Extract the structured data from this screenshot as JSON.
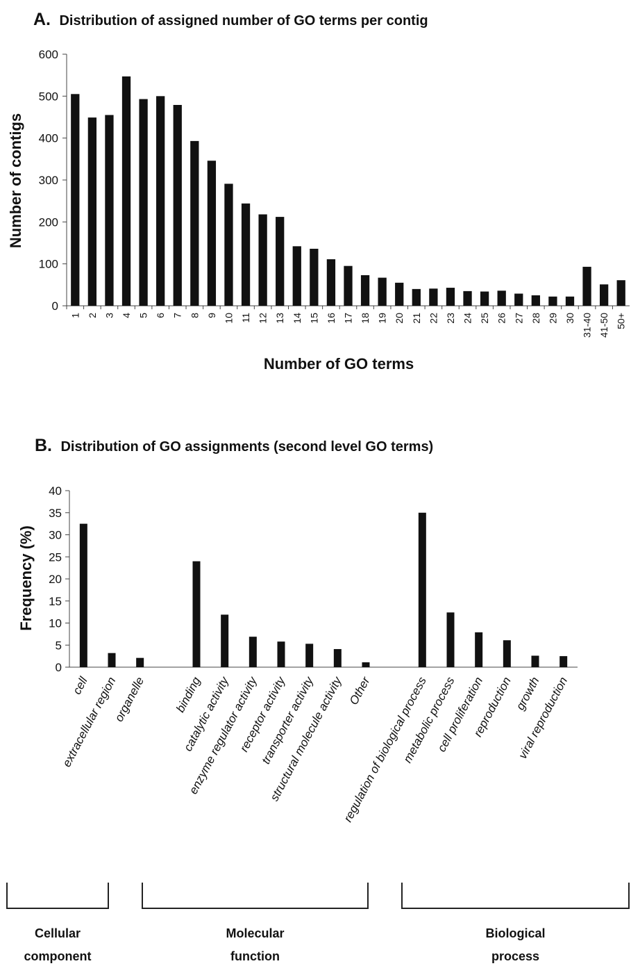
{
  "chart_data": [
    {
      "type": "bar",
      "panel_letter": "A.",
      "title": "Distribution of assigned number of GO terms per contig",
      "xlabel": "Number of GO terms",
      "ylabel": "Number of contigs",
      "ylim": [
        0,
        600
      ],
      "yticks": [
        "0",
        "100",
        "200",
        "300",
        "400",
        "500",
        "600"
      ],
      "grid": false,
      "bar_color": "#111111",
      "categories": [
        "1",
        "2",
        "3",
        "4",
        "5",
        "6",
        "7",
        "8",
        "9",
        "10",
        "11",
        "12",
        "13",
        "14",
        "15",
        "16",
        "17",
        "18",
        "19",
        "20",
        "21",
        "22",
        "23",
        "24",
        "25",
        "26",
        "27",
        "28",
        "29",
        "30",
        "31-40",
        "41-50",
        "50+"
      ],
      "values": [
        505,
        449,
        455,
        547,
        493,
        500,
        479,
        393,
        346,
        291,
        244,
        218,
        212,
        142,
        136,
        111,
        95,
        73,
        67,
        55,
        40,
        41,
        43,
        35,
        34,
        36,
        29,
        25,
        22,
        22,
        93,
        51,
        61
      ]
    },
    {
      "type": "bar",
      "panel_letter": "B.",
      "title": "Distribution of GO assignments (second level GO terms)",
      "xlabel": "",
      "ylabel": "Frequency (%)",
      "ylim": [
        0,
        40
      ],
      "yticks": [
        "0",
        "5",
        "10",
        "15",
        "20",
        "25",
        "30",
        "35",
        "40"
      ],
      "grid": false,
      "bar_color": "#111111",
      "categories": [
        "cell",
        "extracellular region",
        "organelle",
        "",
        "binding",
        "catalytic activity",
        "enzyme regulator activity",
        "receptor activity",
        "transporter activity",
        "structural molecule activity",
        "Other",
        "",
        "regulation of biological process",
        "metabolic process",
        "cell proliferation",
        "reproduction",
        "growth",
        "viral reproduction"
      ],
      "values": [
        32.5,
        3.2,
        2.1,
        null,
        24.0,
        11.9,
        6.9,
        5.8,
        5.3,
        4.1,
        1.1,
        null,
        35.0,
        12.4,
        7.9,
        6.1,
        2.6,
        2.5
      ],
      "groups": [
        {
          "line1": "Cellular",
          "line2": "component"
        },
        {
          "line1": "Molecular",
          "line2": "function"
        },
        {
          "line1": "Biological",
          "line2": "process"
        }
      ]
    }
  ]
}
